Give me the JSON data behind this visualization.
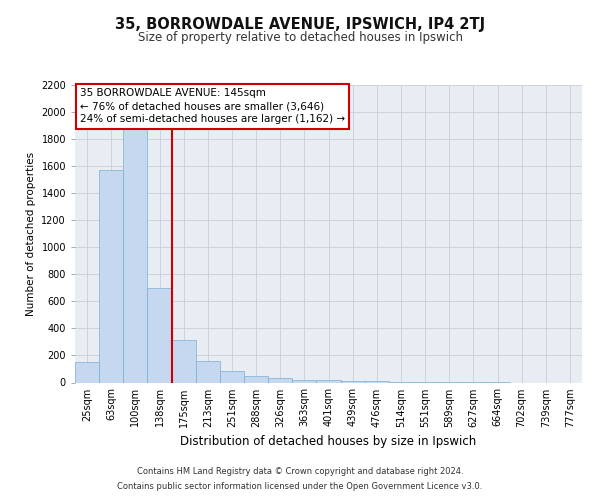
{
  "title": "35, BORROWDALE AVENUE, IPSWICH, IP4 2TJ",
  "subtitle": "Size of property relative to detached houses in Ipswich",
  "xlabel": "Distribution of detached houses by size in Ipswich",
  "ylabel": "Number of detached properties",
  "categories": [
    "25sqm",
    "63sqm",
    "100sqm",
    "138sqm",
    "175sqm",
    "213sqm",
    "251sqm",
    "288sqm",
    "326sqm",
    "363sqm",
    "401sqm",
    "439sqm",
    "476sqm",
    "514sqm",
    "551sqm",
    "589sqm",
    "627sqm",
    "664sqm",
    "702sqm",
    "739sqm",
    "777sqm"
  ],
  "values": [
    150,
    1575,
    1900,
    700,
    315,
    160,
    85,
    45,
    30,
    20,
    15,
    10,
    8,
    3,
    2,
    1,
    1,
    1,
    0,
    0,
    0
  ],
  "bar_color": "#c5d8f0",
  "bar_edge_color": "#7aadd4",
  "highlight_index": 3,
  "highlight_line_color": "#cc0000",
  "annotation_text": "35 BORROWDALE AVENUE: 145sqm\n← 76% of detached houses are smaller (3,646)\n24% of semi-detached houses are larger (1,162) →",
  "annotation_box_edge_color": "#cc0000",
  "ylim": [
    0,
    2200
  ],
  "yticks": [
    0,
    200,
    400,
    600,
    800,
    1000,
    1200,
    1400,
    1600,
    1800,
    2000,
    2200
  ],
  "grid_color": "#c8cdd8",
  "bg_color": "#e8edf4",
  "footer_line1": "Contains HM Land Registry data © Crown copyright and database right 2024.",
  "footer_line2": "Contains public sector information licensed under the Open Government Licence v3.0.",
  "title_fontsize": 10.5,
  "subtitle_fontsize": 8.5,
  "ylabel_fontsize": 7.5,
  "xlabel_fontsize": 8.5,
  "tick_fontsize": 7,
  "annotation_fontsize": 7.5,
  "footer_fontsize": 6
}
